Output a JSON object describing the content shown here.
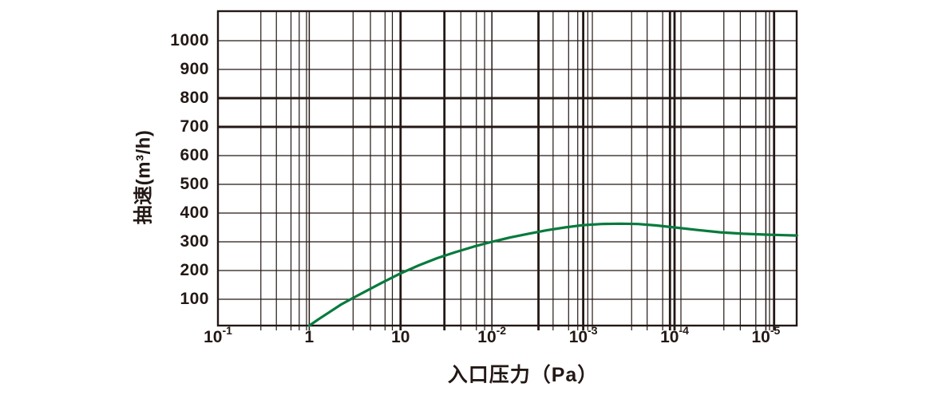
{
  "chart_data": {
    "type": "line",
    "title": "",
    "xlabel": "入口压力（Pa）",
    "ylabel": "抽速(m³/h)",
    "x_scale": "logarithmic (decade grid)",
    "x_tick_labels": [
      "10⁻¹",
      "1",
      "10",
      "10⁻²",
      "10⁻³",
      "10⁻⁴",
      "10⁻⁵"
    ],
    "x_ticks": [
      {
        "base": "10",
        "exp": "-1"
      },
      {
        "base": "1",
        "exp": ""
      },
      {
        "base": "10",
        "exp": ""
      },
      {
        "base": "10",
        "exp": "-2"
      },
      {
        "base": "10",
        "exp": "-3"
      },
      {
        "base": "10",
        "exp": "-4"
      },
      {
        "base": "10",
        "exp": "-5"
      }
    ],
    "y_ticks": [
      "100",
      "200",
      "300",
      "400",
      "500",
      "600",
      "700",
      "800",
      "900",
      "1000"
    ],
    "ylim": [
      0,
      1090
    ],
    "legend": "none",
    "grid": {
      "horizontal_step": 100,
      "bold_horizontal_values": [
        700,
        800
      ],
      "vertical": "decade lines with sparse log minor lines"
    },
    "series": [
      {
        "name": "pumping-speed-curve",
        "color": "#077a3d",
        "x_unit": "decade index along axis (0 = 10⁻¹ tick, 1 = 1, 2 = 10, 3 = 10⁻², 4 = 10⁻³, 5 = 10⁻⁴, 6 = 10⁻⁵)",
        "points": [
          [
            1.0,
            8
          ],
          [
            1.1,
            30
          ],
          [
            1.22,
            55
          ],
          [
            1.35,
            82
          ],
          [
            1.5,
            108
          ],
          [
            1.65,
            133
          ],
          [
            1.8,
            158
          ],
          [
            2.0,
            190
          ],
          [
            2.2,
            218
          ],
          [
            2.4,
            243
          ],
          [
            2.6,
            264
          ],
          [
            2.8,
            283
          ],
          [
            3.0,
            300
          ],
          [
            3.2,
            315
          ],
          [
            3.4,
            328
          ],
          [
            3.6,
            340
          ],
          [
            3.8,
            350
          ],
          [
            4.0,
            358
          ],
          [
            4.2,
            362
          ],
          [
            4.4,
            363
          ],
          [
            4.6,
            362
          ],
          [
            4.8,
            357
          ],
          [
            5.0,
            350
          ],
          [
            5.25,
            341
          ],
          [
            5.5,
            333
          ],
          [
            5.75,
            328
          ],
          [
            6.0,
            325
          ],
          [
            6.2,
            323
          ],
          [
            6.34,
            322
          ]
        ]
      }
    ],
    "ink_color": "#231815"
  }
}
